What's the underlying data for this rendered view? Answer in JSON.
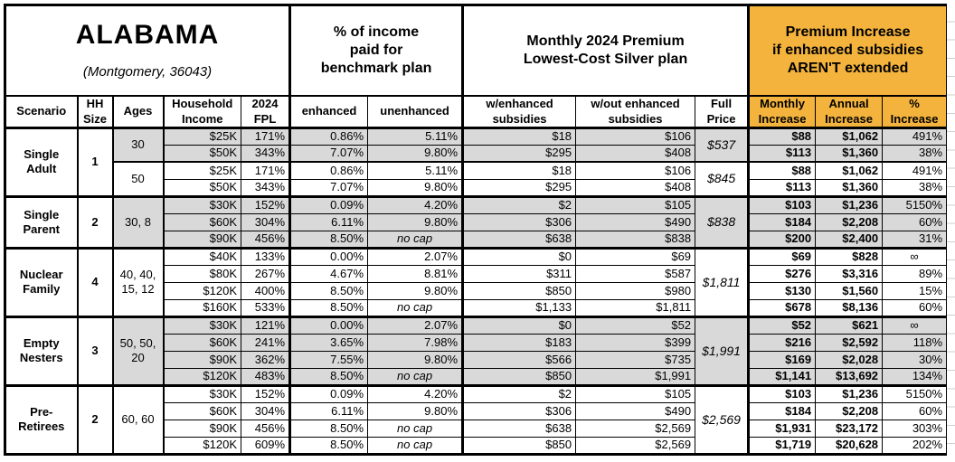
{
  "title": {
    "state": "ALABAMA",
    "location": "(Montgomery, 36043)"
  },
  "sections": {
    "benchmark": "% of income\npaid for\nbenchmark plan",
    "premium": "Monthly 2024 Premium\nLowest-Cost Silver plan",
    "increase": "Premium Increase\nif enhanced subsidies\nAREN'T extended"
  },
  "columns": [
    "Scenario",
    "HH\nSize",
    "Ages",
    "Household\nIncome",
    "2024\nFPL",
    "enhanced",
    "unenhanced",
    "w/enhanced\nsubsidies",
    "w/out enhanced\nsubsidies",
    "Full\nPrice",
    "Monthly\nIncrease",
    "Annual\nIncrease",
    "%\nIncrease"
  ],
  "colors": {
    "accent_orange": "#F3B33C",
    "row_gray": "#D9D9D9",
    "border_black": "#000000"
  },
  "groups": [
    {
      "scenario": "Single\nAdult",
      "hh_size": "1",
      "subgroups": [
        {
          "ages": "30",
          "shade": "gray",
          "full_price": "$537",
          "rows": [
            {
              "income": "$25K",
              "fpl": "171%",
              "enhanced": "0.86%",
              "unenhanced": "5.11%",
              "w_enhanced": "$18",
              "wo_enhanced": "$106",
              "monthly": "$88",
              "annual": "$1,062",
              "pct": "491%"
            },
            {
              "income": "$50K",
              "fpl": "343%",
              "enhanced": "7.07%",
              "unenhanced": "9.80%",
              "w_enhanced": "$295",
              "wo_enhanced": "$408",
              "monthly": "$113",
              "annual": "$1,360",
              "pct": "38%"
            }
          ]
        },
        {
          "ages": "50",
          "shade": "white",
          "full_price": "$845",
          "rows": [
            {
              "income": "$25K",
              "fpl": "171%",
              "enhanced": "0.86%",
              "unenhanced": "5.11%",
              "w_enhanced": "$18",
              "wo_enhanced": "$106",
              "monthly": "$88",
              "annual": "$1,062",
              "pct": "491%"
            },
            {
              "income": "$50K",
              "fpl": "343%",
              "enhanced": "7.07%",
              "unenhanced": "9.80%",
              "w_enhanced": "$295",
              "wo_enhanced": "$408",
              "monthly": "$113",
              "annual": "$1,360",
              "pct": "38%"
            }
          ]
        }
      ]
    },
    {
      "scenario": "Single\nParent",
      "hh_size": "2",
      "subgroups": [
        {
          "ages": "30, 8",
          "shade": "gray",
          "full_price": "$838",
          "rows": [
            {
              "income": "$30K",
              "fpl": "152%",
              "enhanced": "0.09%",
              "unenhanced": "4.20%",
              "w_enhanced": "$2",
              "wo_enhanced": "$105",
              "monthly": "$103",
              "annual": "$1,236",
              "pct": "5150%"
            },
            {
              "income": "$60K",
              "fpl": "304%",
              "enhanced": "6.11%",
              "unenhanced": "9.80%",
              "w_enhanced": "$306",
              "wo_enhanced": "$490",
              "monthly": "$184",
              "annual": "$2,208",
              "pct": "60%"
            },
            {
              "income": "$90K",
              "fpl": "456%",
              "enhanced": "8.50%",
              "unenhanced": "no cap",
              "w_enhanced": "$638",
              "wo_enhanced": "$838",
              "monthly": "$200",
              "annual": "$2,400",
              "pct": "31%"
            }
          ]
        }
      ]
    },
    {
      "scenario": "Nuclear\nFamily",
      "hh_size": "4",
      "subgroups": [
        {
          "ages": "40, 40,\n15, 12",
          "shade": "white",
          "full_price": "$1,811",
          "rows": [
            {
              "income": "$40K",
              "fpl": "133%",
              "enhanced": "0.00%",
              "unenhanced": "2.07%",
              "w_enhanced": "$0",
              "wo_enhanced": "$69",
              "monthly": "$69",
              "annual": "$828",
              "pct": "∞"
            },
            {
              "income": "$80K",
              "fpl": "267%",
              "enhanced": "4.67%",
              "unenhanced": "8.81%",
              "w_enhanced": "$311",
              "wo_enhanced": "$587",
              "monthly": "$276",
              "annual": "$3,316",
              "pct": "89%"
            },
            {
              "income": "$120K",
              "fpl": "400%",
              "enhanced": "8.50%",
              "unenhanced": "9.80%",
              "w_enhanced": "$850",
              "wo_enhanced": "$980",
              "monthly": "$130",
              "annual": "$1,560",
              "pct": "15%"
            },
            {
              "income": "$160K",
              "fpl": "533%",
              "enhanced": "8.50%",
              "unenhanced": "no cap",
              "w_enhanced": "$1,133",
              "wo_enhanced": "$1,811",
              "monthly": "$678",
              "annual": "$8,136",
              "pct": "60%"
            }
          ]
        }
      ]
    },
    {
      "scenario": "Empty\nNesters",
      "hh_size": "3",
      "subgroups": [
        {
          "ages": "50, 50,\n20",
          "shade": "gray",
          "full_price": "$1,991",
          "rows": [
            {
              "income": "$30K",
              "fpl": "121%",
              "enhanced": "0.00%",
              "unenhanced": "2.07%",
              "w_enhanced": "$0",
              "wo_enhanced": "$52",
              "monthly": "$52",
              "annual": "$621",
              "pct": "∞"
            },
            {
              "income": "$60K",
              "fpl": "241%",
              "enhanced": "3.65%",
              "unenhanced": "7.98%",
              "w_enhanced": "$183",
              "wo_enhanced": "$399",
              "monthly": "$216",
              "annual": "$2,592",
              "pct": "118%"
            },
            {
              "income": "$90K",
              "fpl": "362%",
              "enhanced": "7.55%",
              "unenhanced": "9.80%",
              "w_enhanced": "$566",
              "wo_enhanced": "$735",
              "monthly": "$169",
              "annual": "$2,028",
              "pct": "30%"
            },
            {
              "income": "$120K",
              "fpl": "483%",
              "enhanced": "8.50%",
              "unenhanced": "no cap",
              "w_enhanced": "$850",
              "wo_enhanced": "$1,991",
              "monthly": "$1,141",
              "annual": "$13,692",
              "pct": "134%"
            }
          ]
        }
      ]
    },
    {
      "scenario": "Pre-\nRetirees",
      "hh_size": "2",
      "subgroups": [
        {
          "ages": "60, 60",
          "shade": "white",
          "full_price": "$2,569",
          "rows": [
            {
              "income": "$30K",
              "fpl": "152%",
              "enhanced": "0.09%",
              "unenhanced": "4.20%",
              "w_enhanced": "$2",
              "wo_enhanced": "$105",
              "monthly": "$103",
              "annual": "$1,236",
              "pct": "5150%"
            },
            {
              "income": "$60K",
              "fpl": "304%",
              "enhanced": "6.11%",
              "unenhanced": "9.80%",
              "w_enhanced": "$306",
              "wo_enhanced": "$490",
              "monthly": "$184",
              "annual": "$2,208",
              "pct": "60%"
            },
            {
              "income": "$90K",
              "fpl": "456%",
              "enhanced": "8.50%",
              "unenhanced": "no cap",
              "w_enhanced": "$638",
              "wo_enhanced": "$2,569",
              "monthly": "$1,931",
              "annual": "$23,172",
              "pct": "303%"
            },
            {
              "income": "$120K",
              "fpl": "609%",
              "enhanced": "8.50%",
              "unenhanced": "no cap",
              "w_enhanced": "$850",
              "wo_enhanced": "$2,569",
              "monthly": "$1,719",
              "annual": "$20,628",
              "pct": "202%"
            }
          ]
        }
      ]
    }
  ]
}
